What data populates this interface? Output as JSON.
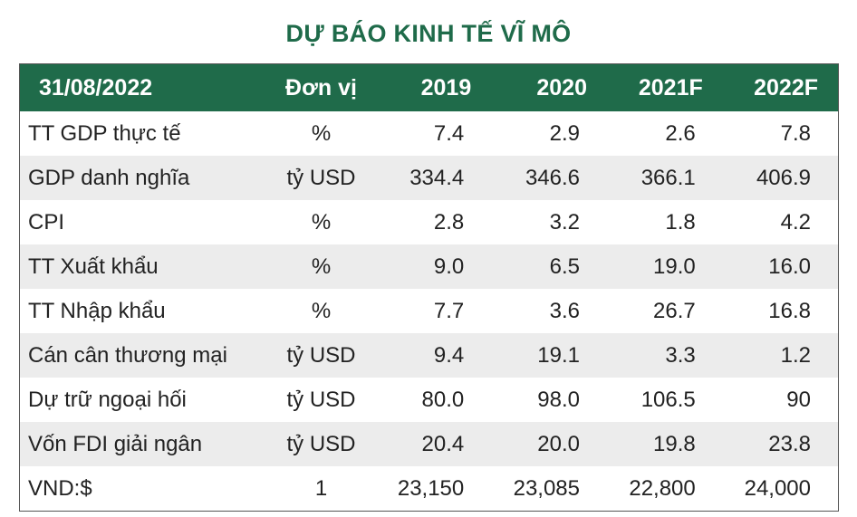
{
  "title": "DỰ BÁO KINH TẾ VĨ MÔ",
  "header": {
    "date": "31/08/2022",
    "unit": "Đơn vị",
    "years": [
      "2019",
      "2020",
      "2021F",
      "2022F"
    ]
  },
  "rows": [
    {
      "label": "TT GDP thực tế",
      "unit": "%",
      "values": [
        "7.4",
        "2.9",
        "2.6",
        "7.8"
      ]
    },
    {
      "label": "GDP danh nghĩa",
      "unit": "tỷ USD",
      "values": [
        "334.4",
        "346.6",
        "366.1",
        "406.9"
      ]
    },
    {
      "label": "CPI",
      "unit": "%",
      "values": [
        "2.8",
        "3.2",
        "1.8",
        "4.2"
      ]
    },
    {
      "label": "TT Xuất khẩu",
      "unit": "%",
      "values": [
        "9.0",
        "6.5",
        "19.0",
        "16.0"
      ]
    },
    {
      "label": "TT Nhập khẩu",
      "unit": "%",
      "values": [
        "7.7",
        "3.6",
        "26.7",
        "16.8"
      ]
    },
    {
      "label": "Cán cân thương mại",
      "unit": "tỷ USD",
      "values": [
        "9.4",
        "19.1",
        "3.3",
        "1.2"
      ]
    },
    {
      "label": "Dự trữ ngoại hối",
      "unit": "tỷ USD",
      "values": [
        "80.0",
        "98.0",
        "106.5",
        "90"
      ]
    },
    {
      "label": "Vốn FDI giải ngân",
      "unit": "tỷ USD",
      "values": [
        "20.4",
        "20.0",
        "19.8",
        "23.8"
      ]
    },
    {
      "label": "VND:$",
      "unit": "1",
      "values": [
        "23,150",
        "23,085",
        "22,800",
        "24,000"
      ]
    }
  ],
  "colors": {
    "header_bg": "#1f6b4a",
    "title_text": "#1f6b4a",
    "stripe": "#ececec"
  },
  "chart_data": {
    "type": "table",
    "title": "DỰ BÁO KINH TẾ VĨ MÔ",
    "columns": [
      "31/08/2022",
      "Đơn vị",
      "2019",
      "2020",
      "2021F",
      "2022F"
    ],
    "rows": [
      [
        "TT GDP thực tế",
        "%",
        7.4,
        2.9,
        2.6,
        7.8
      ],
      [
        "GDP danh nghĩa",
        "tỷ USD",
        334.4,
        346.6,
        366.1,
        406.9
      ],
      [
        "CPI",
        "%",
        2.8,
        3.2,
        1.8,
        4.2
      ],
      [
        "TT Xuất khẩu",
        "%",
        9.0,
        6.5,
        19.0,
        16.0
      ],
      [
        "TT Nhập khẩu",
        "%",
        7.7,
        3.6,
        26.7,
        16.8
      ],
      [
        "Cán cân thương mại",
        "tỷ USD",
        9.4,
        19.1,
        3.3,
        1.2
      ],
      [
        "Dự trữ ngoại hối",
        "tỷ USD",
        80.0,
        98.0,
        106.5,
        90
      ],
      [
        "Vốn FDI giải ngân",
        "tỷ USD",
        20.4,
        20.0,
        19.8,
        23.8
      ],
      [
        "VND:$",
        "1",
        23150,
        23085,
        22800,
        24000
      ]
    ]
  }
}
